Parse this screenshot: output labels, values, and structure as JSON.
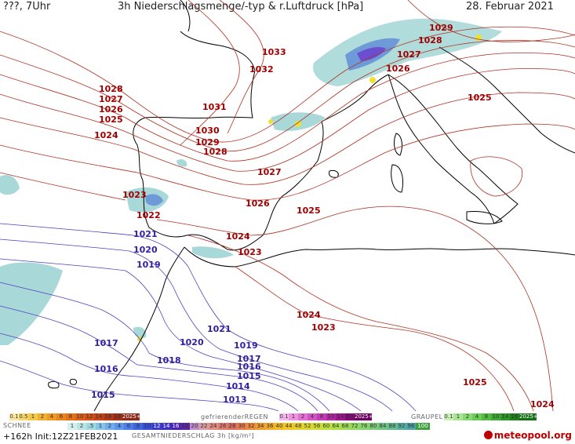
{
  "header": {
    "left": "???, 7Uhr",
    "title": "3h Niederschlagsmenge/-typ & r.Luftdruck [hPa]",
    "date": "28. Februar 2021"
  },
  "isobars_high": [
    "1033",
    "1032",
    "1031",
    "1030",
    "1029",
    "1028",
    "1028",
    "1027",
    "1026",
    "1025",
    "1024",
    "1027",
    "1026",
    "1025",
    "1024",
    "1023",
    "1023",
    "1022",
    "1024",
    "1023",
    "1025",
    "1029",
    "1028",
    "1027",
    "1026",
    "1025",
    "1025",
    "1024"
  ],
  "isobars_low": [
    "1021",
    "1020",
    "1019",
    "1021",
    "1020",
    "1019",
    "1018",
    "1017",
    "1017",
    "1016",
    "1016",
    "1015",
    "1015",
    "1014",
    "1013"
  ],
  "legend": {
    "snow_label": "SCHNEE",
    "frz_label": "gefrierenderREGEN",
    "graupel_label": "GRAUPEL",
    "total_label": "GESAMTNIEDERSCHLAG 3h [kg/m²]",
    "snow_values": [
      "0.1",
      "0.5",
      "1",
      "2",
      "4",
      "6",
      "8",
      "10",
      "12",
      "14",
      "16",
      "18",
      "2025+"
    ],
    "frz_values": [
      "0.1",
      "1",
      "2",
      "4",
      "8",
      "10",
      "14",
      "16",
      "2025+"
    ],
    "graupel_values": [
      "0.1",
      "1",
      "2",
      "4",
      "8",
      "10",
      "14",
      "16",
      "2025+"
    ],
    "total_values": [
      "1",
      "2",
      ".5",
      "1",
      "2",
      "4",
      "6",
      "8",
      "10",
      "12",
      "14",
      "16",
      "18",
      "20",
      "22",
      "24",
      "26",
      "28",
      "30",
      "32",
      "34",
      "36",
      "40",
      "44",
      "48",
      "52",
      "56",
      "60",
      "64",
      "68",
      "72",
      "76",
      "80",
      "84",
      "88",
      "92",
      "96",
      "100"
    ]
  },
  "footer": {
    "run": "+162h  Init:12Z21FEB2021",
    "logo": "meteopool.org"
  },
  "colors": {
    "isobar_high": "#b03020",
    "isobar_low": "#5040c0",
    "label_high": "#a00000",
    "label_low": "#3020a0",
    "rain_light": "#a8d8d8",
    "rain_mid": "#6f9ad8",
    "rain_heavy": "#6b4fd0",
    "snow_yellow": "#f0e030"
  }
}
